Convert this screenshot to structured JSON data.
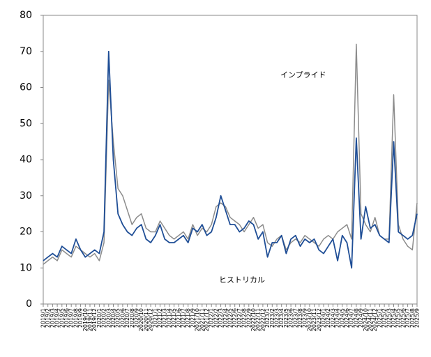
{
  "chart_data": {
    "type": "line",
    "x": [
      "2019/1",
      "2019/2",
      "2019/3",
      "2019/4",
      "2019/5",
      "2019/6",
      "2019/7",
      "2019/8",
      "2019/9",
      "2019/10",
      "2019/11",
      "2019/12",
      "2020/1",
      "2020/2",
      "2020/3",
      "2020/4",
      "2020/5",
      "2020/6",
      "2020/7",
      "2020/8",
      "2020/9",
      "2020/10",
      "2020/11",
      "2020/12",
      "2021/1",
      "2021/2",
      "2021/3",
      "2021/4",
      "2021/5",
      "2021/6",
      "2021/7",
      "2021/8",
      "2021/9",
      "2021/10",
      "2021/11",
      "2021/12",
      "2022/1",
      "2022/2",
      "2022/3",
      "2022/4",
      "2022/5",
      "2022/6",
      "2022/7",
      "2022/8",
      "2022/9",
      "2022/10",
      "2022/11",
      "2022/12",
      "2023/1",
      "2023/2",
      "2023/3",
      "2023/4",
      "2023/5",
      "2023/6",
      "2023/7",
      "2023/8",
      "2023/9",
      "2023/10",
      "2023/11",
      "2023/12",
      "2024/1",
      "2024/2",
      "2024/3",
      "2024/4",
      "2024/5",
      "2024/6",
      "2024/7",
      "2024/8",
      "2024/9",
      "2024/10",
      "2024/11",
      "2024/12",
      "2025/1",
      "2025/2",
      "2025/3",
      "2025/4",
      "2025/5",
      "2025/6",
      "2025/7",
      "2025/8",
      "2025/9"
    ],
    "series": [
      {
        "name": "インプライド",
        "color": "#8c8c8c",
        "values": [
          11,
          12,
          13,
          12,
          15,
          14,
          13,
          16,
          15,
          14,
          13,
          14,
          12,
          17,
          62,
          45,
          32,
          30,
          26,
          22,
          24,
          25,
          21,
          20,
          20,
          23,
          21,
          19,
          18,
          19,
          20,
          18,
          22,
          19,
          21,
          20,
          22,
          27,
          28,
          27,
          24,
          23,
          22,
          20,
          22,
          24,
          21,
          22,
          17,
          16,
          18,
          19,
          15,
          17,
          18,
          17,
          19,
          18,
          17,
          16,
          18,
          19,
          18,
          20,
          21,
          22,
          18,
          72,
          25,
          22,
          20,
          24,
          19,
          18,
          18,
          58,
          22,
          18,
          16,
          15,
          28
        ]
      },
      {
        "name": "ヒストリカル",
        "color": "#1f4e96",
        "values": [
          12,
          13,
          14,
          13,
          16,
          15,
          14,
          18,
          15,
          13,
          14,
          15,
          14,
          20,
          70,
          40,
          25,
          22,
          20,
          19,
          21,
          22,
          18,
          17,
          19,
          22,
          18,
          17,
          17,
          18,
          19,
          17,
          21,
          20,
          22,
          19,
          20,
          24,
          30,
          26,
          22,
          22,
          20,
          21,
          23,
          22,
          18,
          20,
          13,
          17,
          17,
          19,
          14,
          18,
          19,
          16,
          18,
          17,
          18,
          15,
          14,
          16,
          18,
          12,
          19,
          17,
          10,
          46,
          18,
          27,
          21,
          22,
          19,
          18,
          17,
          45,
          20,
          19,
          18,
          19,
          25
        ]
      }
    ],
    "ylim": [
      0,
      80
    ],
    "yticks": [
      0,
      10,
      20,
      30,
      40,
      50,
      60,
      70,
      80
    ]
  }
}
